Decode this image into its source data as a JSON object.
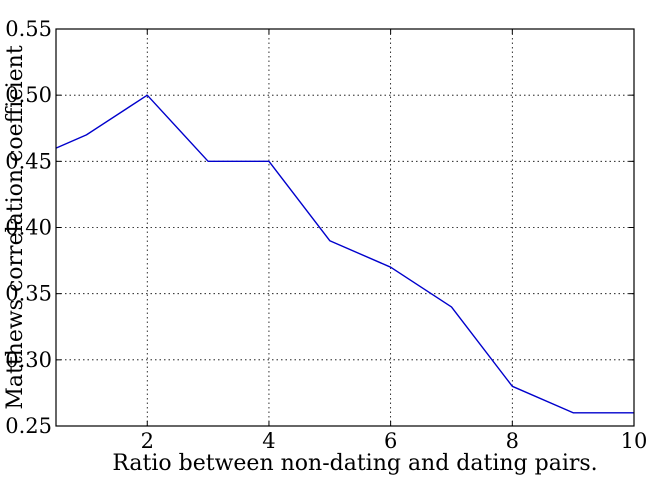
{
  "chart_data": {
    "type": "line",
    "title": "",
    "xlabel": "Ratio between non-dating and dating pairs.",
    "ylabel": "Matthews correlation coefficient",
    "xlim": [
      0.5,
      10
    ],
    "ylim": [
      0.25,
      0.55
    ],
    "xticks": [
      2,
      4,
      6,
      8,
      10
    ],
    "xtick_labels": [
      "2",
      "4",
      "6",
      "8",
      "10"
    ],
    "yticks": [
      0.25,
      0.3,
      0.35,
      0.4,
      0.45,
      0.5,
      0.55
    ],
    "ytick_labels": [
      "0.25",
      "0.30",
      "0.35",
      "0.40",
      "0.45",
      "0.50",
      "0.55"
    ],
    "grid": true,
    "series": [
      {
        "color": "#0000cc",
        "x": [
          0.5,
          1,
          2,
          3,
          4,
          5,
          6,
          7,
          8,
          9,
          10
        ],
        "y": [
          0.46,
          0.47,
          0.5,
          0.45,
          0.45,
          0.39,
          0.37,
          0.34,
          0.28,
          0.26,
          0.26
        ]
      }
    ]
  }
}
